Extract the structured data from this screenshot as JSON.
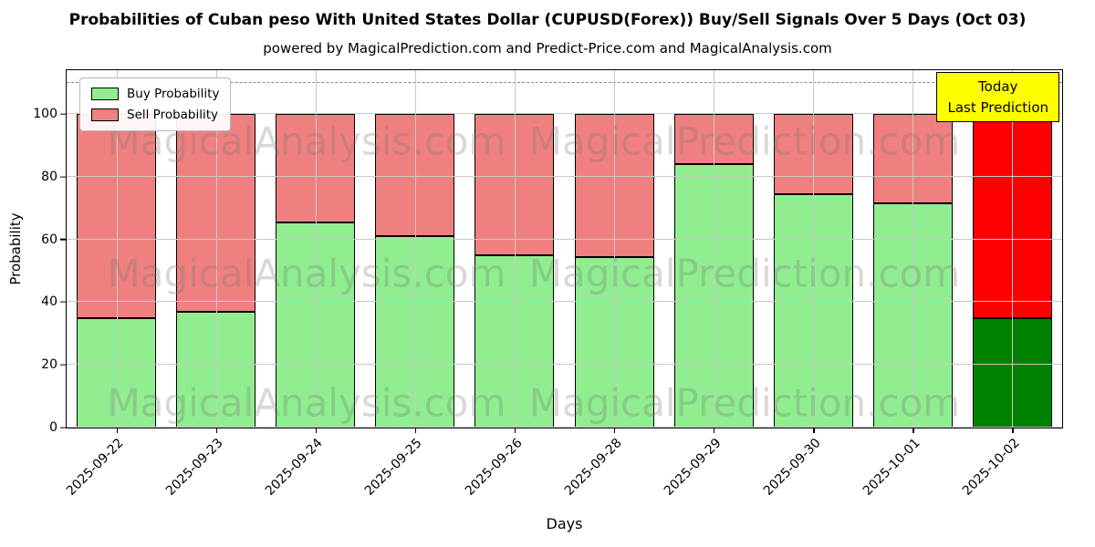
{
  "title": "Probabilities of Cuban peso With United States Dollar (CUPUSD(Forex)) Buy/Sell Signals Over 5 Days (Oct 03)",
  "subtitle": "powered by MagicalPrediction.com and Predict-Price.com and MagicalAnalysis.com",
  "legend": {
    "items": [
      {
        "label": "Buy Probability",
        "color": "#90ee90"
      },
      {
        "label": "Sell Probability",
        "color": "#f08080"
      }
    ]
  },
  "annotation": {
    "line1": "Today",
    "line2": "Last Prediction",
    "bg_color": "#ffff00",
    "border_color": "#000000"
  },
  "watermarks": {
    "left": "MagicalAnalysis.com",
    "right": "MagicalPrediction.com"
  },
  "axes": {
    "xlabel": "Days",
    "ylabel": "Probability"
  },
  "chart_data": {
    "type": "bar",
    "stacked": true,
    "title": "Probabilities of Cuban peso With United States Dollar (CUPUSD(Forex)) Buy/Sell Signals Over 5 Days (Oct 03)",
    "xlabel": "Days",
    "ylabel": "Probability",
    "categories": [
      "2025-09-22",
      "2025-09-23",
      "2025-09-24",
      "2025-09-25",
      "2025-09-26",
      "2025-09-28",
      "2025-09-29",
      "2025-09-30",
      "2025-10-01",
      "2025-10-02"
    ],
    "series": [
      {
        "name": "Buy Probability",
        "color": "#90ee90",
        "final_bar_color": "#008000",
        "values": [
          35,
          37,
          65.5,
          61,
          55,
          54.5,
          84,
          74.5,
          71.5,
          35
        ]
      },
      {
        "name": "Sell Probability",
        "color": "#f08080",
        "final_bar_color": "#ff0000",
        "values": [
          65,
          63,
          34.5,
          39,
          45,
          45.5,
          16,
          25.5,
          28.5,
          65
        ]
      }
    ],
    "bar_edge_color": "#000000",
    "yticks": [
      0,
      20,
      40,
      60,
      80,
      100
    ],
    "ylim": [
      0,
      114
    ],
    "dashed_line_y": 110,
    "grid": true,
    "legend_position": "upper left"
  }
}
